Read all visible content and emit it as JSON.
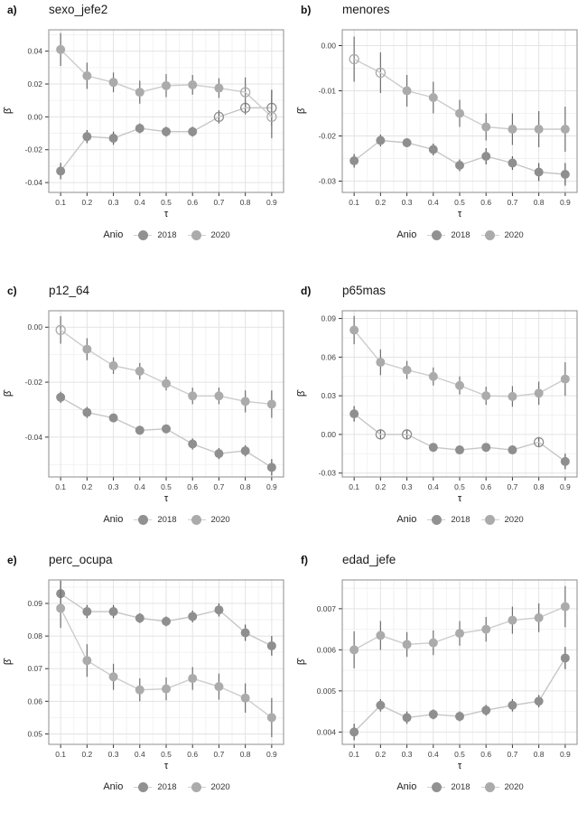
{
  "figure": {
    "xlabel": "τ",
    "ylabel": "β̂"
  },
  "legend": {
    "title": "Anio",
    "items": [
      {
        "label": "2018",
        "color": "#919191"
      },
      {
        "label": "2020",
        "color": "#ababab"
      }
    ]
  },
  "chart_data": [
    {
      "type": "line",
      "panel_label": "a)",
      "title": "sexo_jefe2",
      "xlabel": "τ",
      "ylabel": "β̂",
      "x": [
        0.1,
        0.2,
        0.3,
        0.4,
        0.5,
        0.6,
        0.7,
        0.8,
        0.9
      ],
      "xtick_labels": [
        "0.1",
        "0.2",
        "0.3",
        "0.4",
        "0.5",
        "0.6",
        "0.7",
        "0.8",
        "0.9"
      ],
      "yticks": [
        0.04,
        0.02,
        0.0,
        -0.02,
        -0.04
      ],
      "ytick_labels": [
        "0.04",
        "0.02",
        "0.00",
        "-0.02",
        "-0.04"
      ],
      "ylim": [
        -0.046,
        0.053
      ],
      "series": [
        {
          "name": "2018",
          "point_color": "#8f8f8f",
          "line_color": "#c6c6c6",
          "error_color": "#5a5a5a",
          "values": [
            -0.033,
            -0.012,
            -0.013,
            -0.007,
            -0.009,
            -0.009,
            0.0,
            0.0055,
            0.0055
          ],
          "err": [
            0.005,
            0.004,
            0.004,
            0.003,
            0.003,
            0.003,
            0.004,
            0.004,
            0.011
          ],
          "open": [
            false,
            false,
            false,
            false,
            false,
            false,
            true,
            true,
            true
          ]
        },
        {
          "name": "2020",
          "point_color": "#ababab",
          "line_color": "#cccccc",
          "error_color": "#6e6e6e",
          "values": [
            0.041,
            0.025,
            0.021,
            0.015,
            0.019,
            0.0195,
            0.0175,
            0.015,
            0.0
          ],
          "err": [
            0.01,
            0.008,
            0.006,
            0.007,
            0.007,
            0.006,
            0.006,
            0.009,
            0.013
          ],
          "open": [
            false,
            false,
            false,
            false,
            false,
            false,
            false,
            true,
            true
          ]
        }
      ]
    },
    {
      "type": "line",
      "panel_label": "b)",
      "title": "menores",
      "xlabel": "τ",
      "ylabel": "β̂",
      "x": [
        0.1,
        0.2,
        0.3,
        0.4,
        0.5,
        0.6,
        0.7,
        0.8,
        0.9
      ],
      "xtick_labels": [
        "0.1",
        "0.2",
        "0.3",
        "0.4",
        "0.5",
        "0.6",
        "0.7",
        "0.8",
        "0.9"
      ],
      "yticks": [
        0.0,
        -0.01,
        -0.02,
        -0.03
      ],
      "ytick_labels": [
        "0.00",
        "-0.01",
        "-0.02",
        "-0.03"
      ],
      "ylim": [
        -0.0325,
        0.0035
      ],
      "series": [
        {
          "name": "2018",
          "point_color": "#8f8f8f",
          "line_color": "#c6c6c6",
          "error_color": "#5a5a5a",
          "values": [
            -0.0255,
            -0.021,
            -0.0215,
            -0.023,
            -0.0265,
            -0.0245,
            -0.026,
            -0.028,
            -0.0285
          ],
          "err": [
            0.0015,
            0.0013,
            0.001,
            0.0013,
            0.0013,
            0.0018,
            0.0015,
            0.002,
            0.0025
          ],
          "open": [
            false,
            false,
            false,
            false,
            false,
            false,
            false,
            false,
            false
          ]
        },
        {
          "name": "2020",
          "point_color": "#ababab",
          "line_color": "#cccccc",
          "error_color": "#6e6e6e",
          "values": [
            -0.003,
            -0.006,
            -0.01,
            -0.0115,
            -0.015,
            -0.018,
            -0.0185,
            -0.0185,
            -0.0185
          ],
          "err": [
            0.005,
            0.0045,
            0.0035,
            0.0035,
            0.003,
            0.003,
            0.0035,
            0.004,
            0.005
          ],
          "open": [
            true,
            true,
            false,
            false,
            false,
            false,
            false,
            false,
            false
          ]
        }
      ]
    },
    {
      "type": "line",
      "panel_label": "c)",
      "title": "p12_64",
      "xlabel": "τ",
      "ylabel": "β̂",
      "x": [
        0.1,
        0.2,
        0.3,
        0.4,
        0.5,
        0.6,
        0.7,
        0.8,
        0.9
      ],
      "xtick_labels": [
        "0.1",
        "0.2",
        "0.3",
        "0.4",
        "0.5",
        "0.6",
        "0.7",
        "0.8",
        "0.9"
      ],
      "yticks": [
        0.0,
        -0.02,
        -0.04
      ],
      "ytick_labels": [
        "0.00",
        "-0.02",
        "-0.04"
      ],
      "ylim": [
        -0.0545,
        0.006
      ],
      "series": [
        {
          "name": "2018",
          "point_color": "#8f8f8f",
          "line_color": "#c6c6c6",
          "error_color": "#5a5a5a",
          "values": [
            -0.0255,
            -0.031,
            -0.033,
            -0.0375,
            -0.037,
            -0.0425,
            -0.046,
            -0.045,
            -0.051
          ],
          "err": [
            0.002,
            0.002,
            0.0015,
            0.0015,
            0.0015,
            0.002,
            0.002,
            0.002,
            0.003
          ],
          "open": [
            false,
            false,
            false,
            false,
            false,
            false,
            false,
            false,
            false
          ]
        },
        {
          "name": "2020",
          "point_color": "#ababab",
          "line_color": "#cccccc",
          "error_color": "#6e6e6e",
          "values": [
            -0.001,
            -0.008,
            -0.014,
            -0.016,
            -0.0205,
            -0.025,
            -0.025,
            -0.027,
            -0.028
          ],
          "err": [
            0.005,
            0.004,
            0.003,
            0.003,
            0.0025,
            0.003,
            0.003,
            0.004,
            0.005
          ],
          "open": [
            true,
            false,
            false,
            false,
            false,
            false,
            false,
            false,
            false
          ]
        }
      ]
    },
    {
      "type": "line",
      "panel_label": "d)",
      "title": "p65mas",
      "xlabel": "τ",
      "ylabel": "β̂",
      "x": [
        0.1,
        0.2,
        0.3,
        0.4,
        0.5,
        0.6,
        0.7,
        0.8,
        0.9
      ],
      "xtick_labels": [
        "0.1",
        "0.2",
        "0.3",
        "0.4",
        "0.5",
        "0.6",
        "0.7",
        "0.8",
        "0.9"
      ],
      "yticks": [
        0.09,
        0.06,
        0.03,
        0.0,
        -0.03
      ],
      "ytick_labels": [
        "0.09",
        "0.06",
        "0.03",
        "0.00",
        "-0.03"
      ],
      "ylim": [
        -0.033,
        0.096
      ],
      "series": [
        {
          "name": "2018",
          "point_color": "#8f8f8f",
          "line_color": "#c6c6c6",
          "error_color": "#5a5a5a",
          "values": [
            0.016,
            0.0,
            0.0,
            -0.01,
            -0.012,
            -0.01,
            -0.012,
            -0.006,
            -0.021
          ],
          "err": [
            0.006,
            0.004,
            0.004,
            0.003,
            0.003,
            0.003,
            0.003,
            0.004,
            0.006
          ],
          "open": [
            false,
            true,
            true,
            false,
            false,
            false,
            false,
            true,
            false
          ]
        },
        {
          "name": "2020",
          "point_color": "#ababab",
          "line_color": "#cccccc",
          "error_color": "#6e6e6e",
          "values": [
            0.081,
            0.056,
            0.05,
            0.045,
            0.038,
            0.03,
            0.0295,
            0.032,
            0.043
          ],
          "err": [
            0.011,
            0.01,
            0.007,
            0.007,
            0.007,
            0.007,
            0.008,
            0.009,
            0.013
          ],
          "open": [
            false,
            false,
            false,
            false,
            false,
            false,
            false,
            false,
            false
          ]
        }
      ]
    },
    {
      "type": "line",
      "panel_label": "e)",
      "title": "perc_ocupa",
      "xlabel": "τ",
      "ylabel": "β̂",
      "x": [
        0.1,
        0.2,
        0.3,
        0.4,
        0.5,
        0.6,
        0.7,
        0.8,
        0.9
      ],
      "xtick_labels": [
        "0.1",
        "0.2",
        "0.3",
        "0.4",
        "0.5",
        "0.6",
        "0.7",
        "0.8",
        "0.9"
      ],
      "yticks": [
        0.09,
        0.08,
        0.07,
        0.06,
        0.05
      ],
      "ytick_labels": [
        "0.09",
        "0.08",
        "0.07",
        "0.06",
        "0.05"
      ],
      "ylim": [
        0.0468,
        0.0972
      ],
      "series": [
        {
          "name": "2018",
          "point_color": "#8f8f8f",
          "line_color": "#c6c6c6",
          "error_color": "#5a5a5a",
          "values": [
            0.093,
            0.0875,
            0.0875,
            0.0855,
            0.0845,
            0.086,
            0.088,
            0.081,
            0.077
          ],
          "err": [
            0.004,
            0.002,
            0.002,
            0.0015,
            0.0015,
            0.0018,
            0.002,
            0.0025,
            0.003
          ],
          "open": [
            false,
            false,
            false,
            false,
            false,
            false,
            false,
            false,
            false
          ]
        },
        {
          "name": "2020",
          "point_color": "#ababab",
          "line_color": "#cccccc",
          "error_color": "#6e6e6e",
          "values": [
            0.0885,
            0.0725,
            0.0675,
            0.0635,
            0.0638,
            0.067,
            0.0645,
            0.061,
            0.055
          ],
          "err": [
            0.006,
            0.005,
            0.004,
            0.0035,
            0.0035,
            0.0035,
            0.004,
            0.0045,
            0.006
          ],
          "open": [
            false,
            false,
            false,
            false,
            false,
            false,
            false,
            false,
            false
          ]
        }
      ]
    },
    {
      "type": "line",
      "panel_label": "f)",
      "title": "edad_jefe",
      "xlabel": "τ",
      "ylabel": "β̂",
      "x": [
        0.1,
        0.2,
        0.3,
        0.4,
        0.5,
        0.6,
        0.7,
        0.8,
        0.9
      ],
      "xtick_labels": [
        "0.1",
        "0.2",
        "0.3",
        "0.4",
        "0.5",
        "0.6",
        "0.7",
        "0.8",
        "0.9"
      ],
      "yticks": [
        0.007,
        0.006,
        0.005,
        0.004
      ],
      "ytick_labels": [
        "0.007",
        "0.006",
        "0.005",
        "0.004"
      ],
      "ylim": [
        0.0037,
        0.0077
      ],
      "series": [
        {
          "name": "2018",
          "point_color": "#8f8f8f",
          "line_color": "#c6c6c6",
          "error_color": "#5a5a5a",
          "values": [
            0.004,
            0.00465,
            0.00435,
            0.00443,
            0.00438,
            0.00453,
            0.00465,
            0.00475,
            0.0058
          ],
          "err": [
            0.0002,
            0.00015,
            0.00015,
            0.00012,
            0.00012,
            0.00013,
            0.00015,
            0.00015,
            0.00027
          ],
          "open": [
            false,
            false,
            false,
            false,
            false,
            false,
            false,
            false,
            false
          ]
        },
        {
          "name": "2020",
          "point_color": "#ababab",
          "line_color": "#cccccc",
          "error_color": "#6e6e6e",
          "values": [
            0.006,
            0.00635,
            0.00613,
            0.00617,
            0.0064,
            0.0065,
            0.00672,
            0.00678,
            0.00705
          ],
          "err": [
            0.00045,
            0.00035,
            0.0003,
            0.0003,
            0.0003,
            0.0003,
            0.00033,
            0.00035,
            0.0005
          ],
          "open": [
            false,
            false,
            false,
            false,
            false,
            false,
            false,
            false,
            false
          ]
        }
      ]
    }
  ]
}
